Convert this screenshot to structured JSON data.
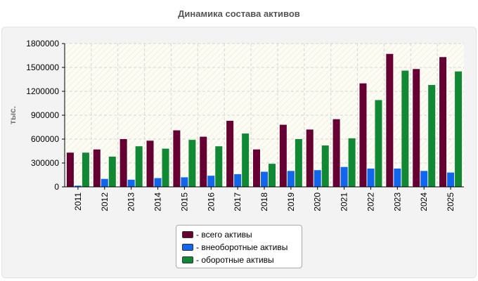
{
  "chart_data": {
    "type": "bar",
    "title": "Динамика состава активов",
    "ylabel": "тыс.",
    "xlabel": "",
    "ylim": [
      0,
      1800000
    ],
    "yticks": [
      0,
      300000,
      600000,
      900000,
      1200000,
      1500000,
      1800000
    ],
    "grid": true,
    "legend_position": "bottom-center",
    "categories": [
      "2011",
      "2012",
      "2013",
      "2014",
      "2015",
      "2016",
      "2017",
      "2018",
      "2019",
      "2020",
      "2021",
      "2022",
      "2023",
      "2024",
      "2025"
    ],
    "series": [
      {
        "name": "- всего активы",
        "color": "#660033",
        "values": [
          430000,
          470000,
          600000,
          580000,
          710000,
          630000,
          830000,
          470000,
          780000,
          720000,
          850000,
          1300000,
          1670000,
          1480000,
          1630000
        ]
      },
      {
        "name": "- внеоборотные активы",
        "color": "#1166ee",
        "values": [
          15000,
          100000,
          90000,
          110000,
          120000,
          140000,
          160000,
          190000,
          200000,
          210000,
          250000,
          230000,
          230000,
          200000,
          180000
        ]
      },
      {
        "name": "- оборотные активы",
        "color": "#118833",
        "values": [
          430000,
          380000,
          510000,
          480000,
          590000,
          510000,
          670000,
          290000,
          600000,
          520000,
          610000,
          1090000,
          1460000,
          1280000,
          1450000
        ]
      }
    ]
  }
}
